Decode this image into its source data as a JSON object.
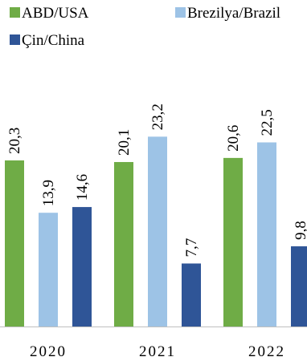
{
  "chart_data": {
    "type": "bar",
    "categories": [
      "2020",
      "2021",
      "2022"
    ],
    "series": [
      {
        "name": "ABD/USA",
        "color": "#6fac46",
        "values": [
          20.3,
          20.1,
          20.6
        ],
        "labels": [
          "20,3",
          "20,1",
          "20,6"
        ]
      },
      {
        "name": "Brezilya/Brazil",
        "color": "#9dc3e6",
        "values": [
          13.9,
          23.2,
          22.5
        ],
        "labels": [
          "13,9",
          "23,2",
          "22,5"
        ]
      },
      {
        "name": "Çin/China",
        "color": "#2f5597",
        "values": [
          14.6,
          7.7,
          9.8
        ],
        "labels": [
          "14,6",
          "7,7",
          "9,8"
        ]
      }
    ],
    "ylim": [
      0,
      26
    ],
    "legend_position": "top",
    "grid": false
  }
}
